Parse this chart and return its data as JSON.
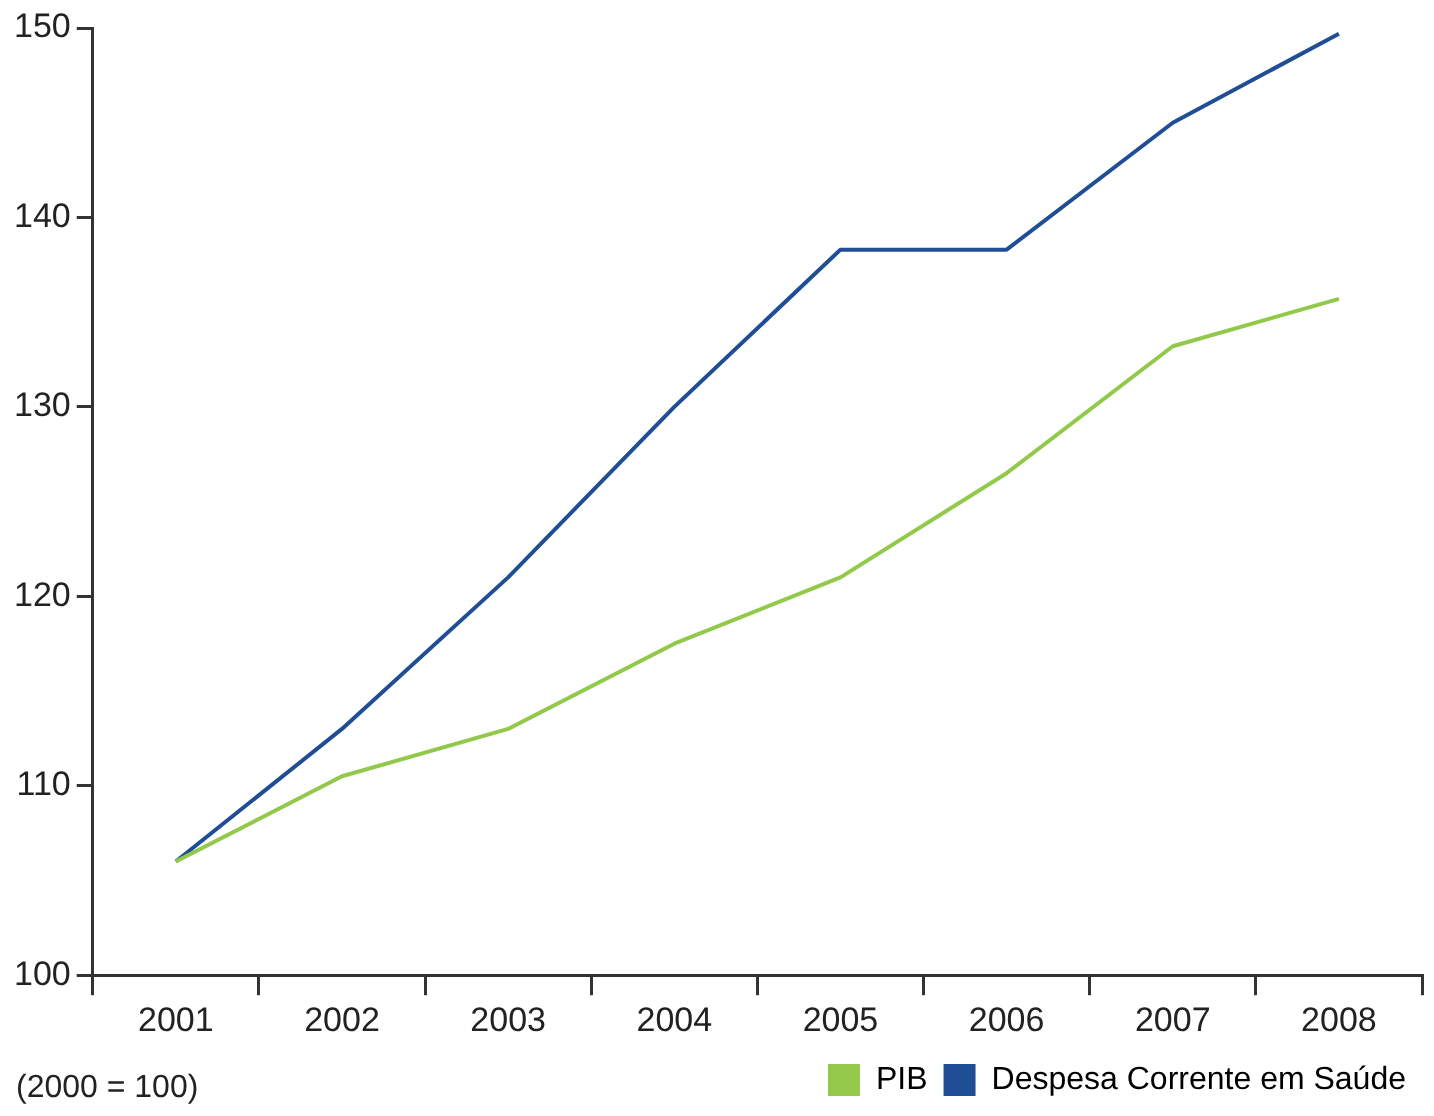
{
  "chart_data": {
    "type": "line",
    "categories": [
      "2001",
      "2002",
      "2003",
      "2004",
      "2005",
      "2006",
      "2007",
      "2008"
    ],
    "series": [
      {
        "name": "PIB",
        "color": "#92c94a",
        "values": [
          106,
          110.5,
          113,
          117.5,
          121,
          126.5,
          133.2,
          135.7
        ]
      },
      {
        "name": "Despesa Corrente em Saúde",
        "color": "#1f4e96",
        "values": [
          106,
          113,
          121,
          130,
          138.3,
          138.3,
          145,
          149.7
        ]
      }
    ],
    "ylim": [
      100,
      150
    ],
    "yticks": [
      100,
      110,
      120,
      130,
      140,
      150
    ],
    "grid": false,
    "legend": "bottom right",
    "marker": "none",
    "line_style": "solid",
    "annotations": [
      "(2000 = 100)"
    ]
  }
}
